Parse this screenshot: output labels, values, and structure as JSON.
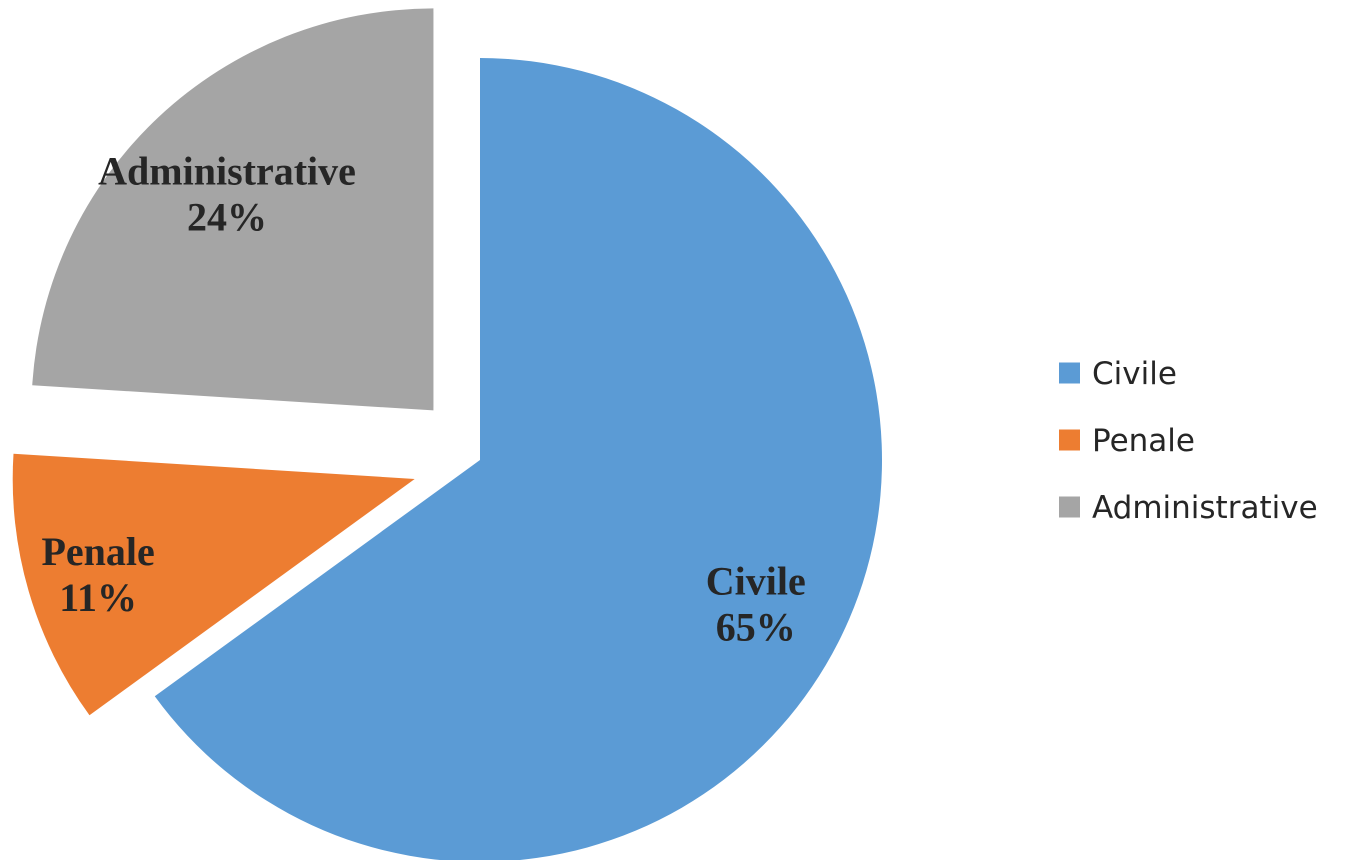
{
  "chart_data": {
    "type": "pie",
    "categories": [
      "Civile",
      "Penale",
      "Administrative"
    ],
    "values": [
      65,
      11,
      24
    ],
    "value_labels": [
      "65%",
      "11%",
      "24%"
    ],
    "colors": [
      "#5B9BD5",
      "#ED7D31",
      "#A5A5A5"
    ],
    "start_angle_deg": 0,
    "direction": "clockwise",
    "exploded": true,
    "legend_position": "right",
    "title": ""
  }
}
